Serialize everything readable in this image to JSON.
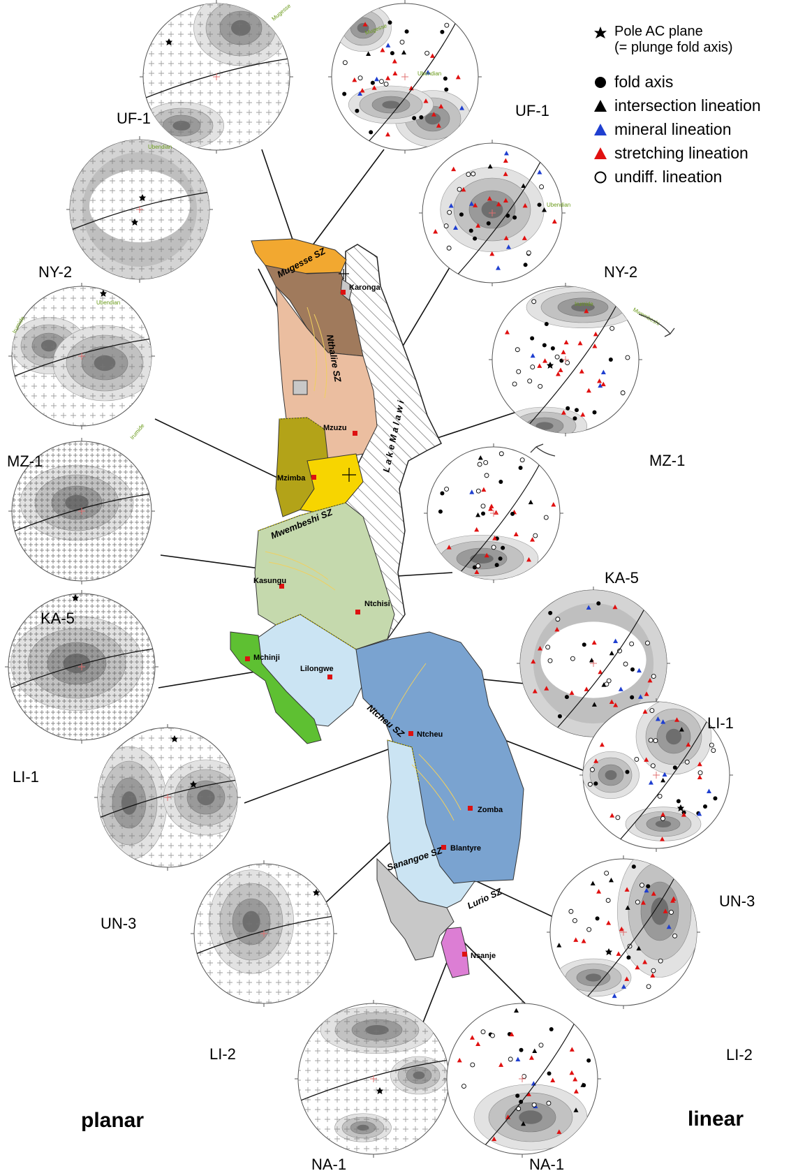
{
  "legend": {
    "pole_label_1": "Pole AC plane",
    "pole_label_2": "(= plunge fold axis)",
    "items": [
      {
        "icon": "filled-circle",
        "label": "fold axis",
        "color": "#000000"
      },
      {
        "icon": "filled-triangle",
        "label": "intersection lineation",
        "color": "#000000"
      },
      {
        "icon": "filled-triangle",
        "label": "mineral lineation",
        "color": "#1f3fd0"
      },
      {
        "icon": "filled-triangle",
        "label": "stretching lineation",
        "color": "#e01010"
      },
      {
        "icon": "open-circle",
        "label": "undiff. lineation",
        "color": "#000000"
      }
    ]
  },
  "columns": {
    "left": "planar",
    "right": "linear"
  },
  "stereonets": {
    "uf1_planar": "UF-1",
    "uf1_linear": "UF-1",
    "ny2_planar": "NY-2",
    "ny2_linear": "NY-2",
    "mz1_planar": "MZ-1",
    "mz1_linear": "MZ-1",
    "ka5_planar": "KA-5",
    "ka5_linear": "KA-5",
    "li1_planar": "LI-1",
    "li1_linear": "LI-1",
    "un3_planar": "UN-3",
    "un3_linear": "UN-3",
    "li2_planar": "LI-2",
    "li2_linear": "LI-2",
    "na1_planar": "NA-1",
    "na1_linear": "NA-1"
  },
  "net_annotations": {
    "mugesse": "Mugesse",
    "ubendian": "Ubendian",
    "irumide": "Irumide",
    "mwembeshi": "Mwembeshi"
  },
  "map": {
    "towns": {
      "karonga": "Karonga",
      "mzuzu": "Mzuzu",
      "mzimba": "Mzimba",
      "kasungu": "Kasungu",
      "ntchisi": "Ntchisi",
      "mchinji": "Mchinji",
      "lilongwe": "Lilongwe",
      "ntcheu": "Ntcheu",
      "zomba": "Zomba",
      "blantyre": "Blantyre",
      "nsanje": "Nsanje"
    },
    "shear_zones": {
      "mugesse": "Mugesse SZ",
      "nthalire": "Nthalire SZ",
      "mwembeshi": "Mwembeshi SZ",
      "ntcheu": "Ntcheu SZ",
      "sanangoe": "Sanangoe SZ",
      "lurio": "Lurio SZ"
    },
    "lake": "L a k e   M a l a w i",
    "colors": {
      "ubendian_orange": "#f2a830",
      "brown": "#a07a5c",
      "peach": "#ebbea0",
      "olive": "#b3a318",
      "yellow": "#f7d500",
      "sage": "#c5d9ad",
      "pale_blue": "#cbe4f3",
      "blue": "#7aa3d0",
      "green": "#5ec032",
      "grey": "#c8c8c8",
      "pink": "#dc7ed4",
      "town_marker": "#dd1111"
    }
  }
}
